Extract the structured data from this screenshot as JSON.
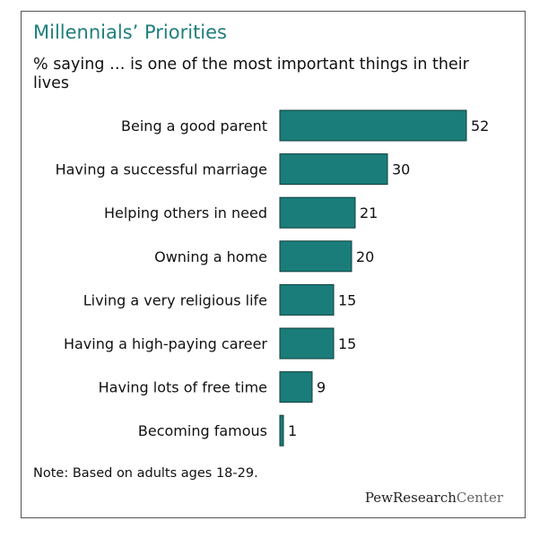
{
  "title": "Millennials’ Priorities",
  "subtitle": "% saying … is one of the most important things in their lives",
  "note": "Note: Based on adults ages 18-29.",
  "logo": {
    "part1": "PewResearch",
    "part2": "Center"
  },
  "colors": {
    "bar": "#1a7d7a",
    "title": "#1f7f7c",
    "bar_stroke": "#0d3d3b"
  },
  "chart_data": {
    "type": "bar",
    "orientation": "horizontal",
    "categories": [
      "Being a good parent",
      "Having a successful marriage",
      "Helping others in need",
      "Owning a home",
      "Living a very religious life",
      "Having a high-paying career",
      "Having lots of free time",
      "Becoming famous"
    ],
    "values": [
      52,
      30,
      21,
      20,
      15,
      15,
      9,
      1
    ],
    "data_labels": [
      "52",
      "30",
      "21",
      "20",
      "15",
      "15",
      "9",
      "1"
    ],
    "xlim": [
      0,
      52
    ],
    "grid": false,
    "legend": "none"
  }
}
